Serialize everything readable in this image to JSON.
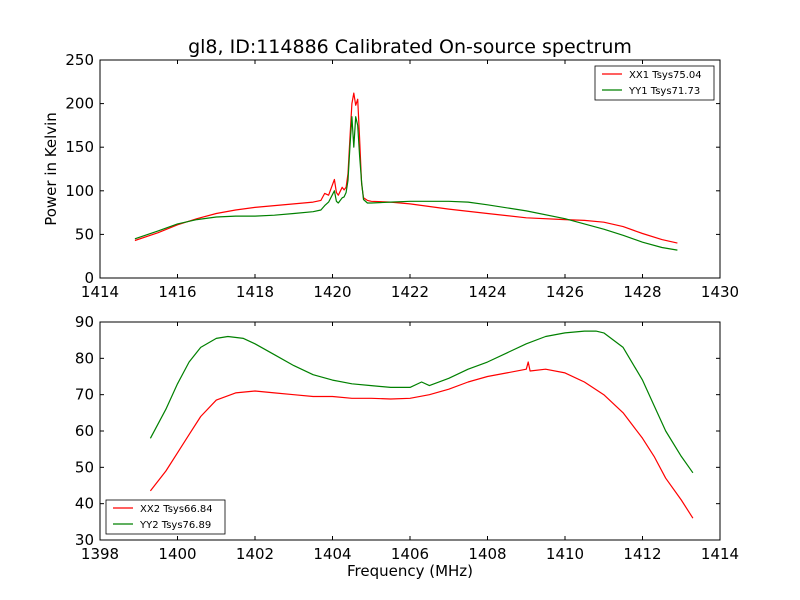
{
  "title": "gl8, ID:114886 Calibrated On-source spectrum",
  "colors": {
    "red": "#ff0000",
    "green": "#008000"
  },
  "chart_data": [
    {
      "type": "line",
      "title": "gl8, ID:114886 Calibrated On-source spectrum",
      "xlabel": "",
      "ylabel": "Power in Kelvin",
      "xlim": [
        1414,
        1430
      ],
      "ylim": [
        0,
        250
      ],
      "xticks": [
        1414,
        1416,
        1418,
        1420,
        1422,
        1424,
        1426,
        1428,
        1430
      ],
      "yticks": [
        0,
        50,
        100,
        150,
        200,
        250
      ],
      "grid": false,
      "legend": "upper right",
      "series": [
        {
          "name": "XX1 Tsys75.04",
          "color": "#ff0000",
          "x": [
            1414.9,
            1415.5,
            1416,
            1416.5,
            1417,
            1417.5,
            1418,
            1418.5,
            1419,
            1419.5,
            1419.7,
            1419.8,
            1419.9,
            1420.05,
            1420.1,
            1420.15,
            1420.25,
            1420.3,
            1420.35,
            1420.4,
            1420.45,
            1420.5,
            1420.55,
            1420.6,
            1420.65,
            1420.7,
            1420.75,
            1420.8,
            1420.9,
            1421,
            1421.5,
            1422,
            1422.5,
            1423,
            1424,
            1425,
            1426,
            1426.5,
            1427,
            1427.5,
            1428,
            1428.5,
            1428.9
          ],
          "y": [
            43,
            52,
            61,
            68,
            74,
            78,
            81,
            83,
            85,
            87,
            89,
            97,
            95,
            113,
            98,
            95,
            104,
            101,
            104,
            120,
            160,
            200,
            212,
            198,
            205,
            160,
            108,
            92,
            89,
            88,
            87,
            85,
            82,
            79,
            74,
            69,
            67,
            66,
            64,
            59,
            51,
            44,
            40
          ]
        },
        {
          "name": "YY1 Tsys71.73",
          "color": "#008000",
          "x": [
            1414.9,
            1415.5,
            1416,
            1416.5,
            1417,
            1417.5,
            1418,
            1418.5,
            1419,
            1419.5,
            1419.7,
            1419.8,
            1419.9,
            1420.05,
            1420.1,
            1420.15,
            1420.25,
            1420.3,
            1420.35,
            1420.4,
            1420.45,
            1420.5,
            1420.55,
            1420.6,
            1420.65,
            1420.7,
            1420.75,
            1420.8,
            1420.9,
            1421,
            1421.5,
            1422,
            1422.5,
            1423,
            1423.5,
            1424,
            1425,
            1426,
            1426.5,
            1427,
            1427.5,
            1428,
            1428.5,
            1428.9
          ],
          "y": [
            45,
            54,
            62,
            67,
            70,
            71,
            71,
            72,
            74,
            76,
            78,
            83,
            87,
            100,
            88,
            86,
            92,
            93,
            98,
            112,
            150,
            185,
            150,
            185,
            175,
            140,
            110,
            90,
            86,
            86,
            87,
            88,
            88,
            88,
            87,
            84,
            77,
            68,
            62,
            56,
            49,
            41,
            35,
            32
          ]
        }
      ]
    },
    {
      "type": "line",
      "title": "",
      "xlabel": "Frequency (MHz)",
      "ylabel": "",
      "xlim": [
        1398,
        1414
      ],
      "ylim": [
        30,
        90
      ],
      "xticks": [
        1398,
        1400,
        1402,
        1404,
        1406,
        1408,
        1410,
        1412,
        1414
      ],
      "yticks": [
        30,
        40,
        50,
        60,
        70,
        80,
        90
      ],
      "grid": false,
      "legend": "lower left",
      "series": [
        {
          "name": "XX2 Tsys66.84",
          "color": "#ff0000",
          "x": [
            1399.3,
            1399.7,
            1400,
            1400.3,
            1400.6,
            1401,
            1401.5,
            1402,
            1402.5,
            1403,
            1403.5,
            1404,
            1404.5,
            1405,
            1405.5,
            1406,
            1406.5,
            1407,
            1407.5,
            1408,
            1408.5,
            1409,
            1409.05,
            1409.1,
            1409.5,
            1410,
            1410.5,
            1411,
            1411.5,
            1412,
            1412.3,
            1412.6,
            1413,
            1413.3
          ],
          "y": [
            43.5,
            49,
            54,
            59,
            64,
            68.5,
            70.5,
            71,
            70.5,
            70,
            69.5,
            69.5,
            69,
            69,
            68.8,
            69,
            70,
            71.5,
            73.5,
            75,
            76,
            77,
            79,
            76.5,
            77,
            76,
            73.5,
            70,
            65,
            58,
            53,
            47,
            41,
            36
          ]
        },
        {
          "name": "YY2 Tsys76.89",
          "color": "#008000",
          "x": [
            1399.3,
            1399.7,
            1400,
            1400.3,
            1400.6,
            1401,
            1401.3,
            1401.7,
            1402,
            1402.5,
            1403,
            1403.5,
            1404,
            1404.5,
            1405,
            1405.5,
            1406,
            1406.3,
            1406.5,
            1407,
            1407.5,
            1408,
            1408.5,
            1409,
            1409.5,
            1410,
            1410.5,
            1410.8,
            1411,
            1411.5,
            1412,
            1412.3,
            1412.6,
            1413,
            1413.3
          ],
          "y": [
            58,
            66,
            73,
            79,
            83,
            85.5,
            86,
            85.5,
            84,
            81,
            78,
            75.5,
            74,
            73,
            72.5,
            72,
            72,
            73.5,
            72.5,
            74.5,
            77,
            79,
            81.5,
            84,
            86,
            87,
            87.5,
            87.5,
            87,
            83,
            74,
            67,
            60,
            53,
            48.5
          ]
        }
      ]
    }
  ]
}
